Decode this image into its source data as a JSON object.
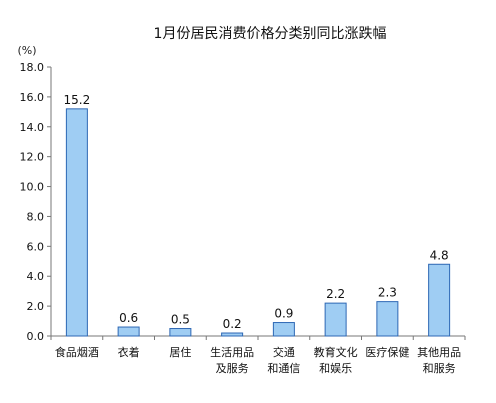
{
  "chart_data": {
    "type": "bar",
    "title": "1月份居民消费价格分类别同比涨跌幅",
    "ylabel": "(%)",
    "xlabel": "",
    "ylim": [
      0,
      18
    ],
    "yticks": [
      "0.0",
      "2.0",
      "4.0",
      "6.0",
      "8.0",
      "10.0",
      "12.0",
      "14.0",
      "16.0",
      "18.0"
    ],
    "grid": false,
    "categories": [
      [
        "食品烟酒"
      ],
      [
        "衣着"
      ],
      [
        "居住"
      ],
      [
        "生活用品",
        "及服务"
      ],
      [
        "交通",
        "和通信"
      ],
      [
        "教育文化",
        "和娱乐"
      ],
      [
        "医疗保健"
      ],
      [
        "其他用品",
        "和服务"
      ]
    ],
    "values": [
      15.2,
      0.6,
      0.5,
      0.2,
      0.9,
      2.2,
      2.3,
      4.8
    ],
    "value_labels": [
      "15.2",
      "0.6",
      "0.5",
      "0.2",
      "0.9",
      "2.2",
      "2.3",
      "4.8"
    ],
    "colors": {
      "bar_fill": "#9fcdf3",
      "bar_stroke": "#2d67b4",
      "axis": "#777777"
    }
  }
}
